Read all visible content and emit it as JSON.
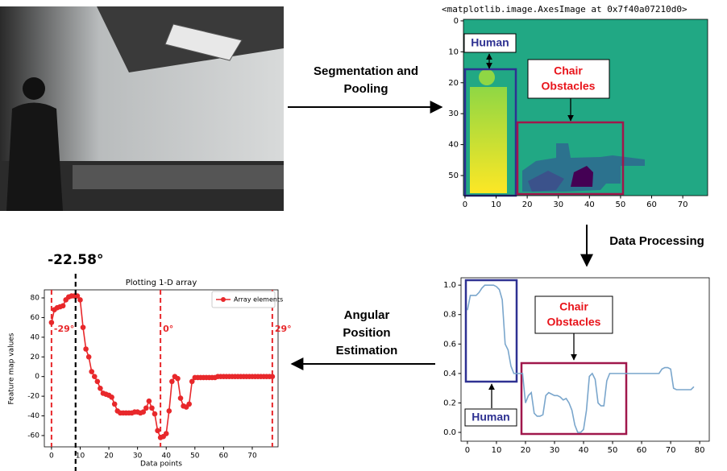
{
  "steps": {
    "segmentation": [
      "Segmentation and",
      "Pooling"
    ],
    "processing": [
      "Data Processing"
    ],
    "estimation": [
      "Angular",
      "Position",
      "Estimation"
    ]
  },
  "chart_data": [
    {
      "type": "image",
      "title": "<matplotlib.image.AxesImage at 0x7f40a07210d0>",
      "xlim": [
        -0.5,
        78
      ],
      "xticks": [
        0,
        10,
        20,
        30,
        40,
        50,
        60,
        70
      ],
      "ylim": [
        56.5,
        -0.5
      ],
      "yticks": [
        0,
        10,
        20,
        30,
        40,
        50
      ],
      "annotations": [
        {
          "text": [
            "Human"
          ]
        },
        {
          "text": [
            "Chair",
            "Obstacles"
          ]
        }
      ]
    },
    {
      "type": "line",
      "xlim": [
        -2.2,
        83.3
      ],
      "xticks": [
        0,
        10,
        20,
        30,
        40,
        50,
        60,
        70,
        80
      ],
      "ylim": [
        -0.06,
        1.05
      ],
      "yticks": [
        {
          "value": 0,
          "label": "0.0"
        },
        0.2,
        0.4,
        0.6,
        0.8,
        {
          "value": 1,
          "label": "1.0"
        }
      ],
      "x": [
        0,
        1,
        2,
        3,
        4,
        5,
        6,
        7,
        8,
        9,
        10,
        11,
        12,
        13,
        14,
        15,
        16,
        17,
        18,
        19,
        20,
        21,
        22,
        23,
        24,
        25,
        26,
        27,
        28,
        29,
        30,
        31,
        32,
        33,
        34,
        35,
        36,
        37,
        38,
        39,
        40,
        41,
        42,
        43,
        44,
        45,
        46,
        47,
        48,
        49,
        50,
        51,
        52,
        53,
        54,
        55,
        56,
        57,
        58,
        59,
        60,
        61,
        62,
        63,
        64,
        65,
        66,
        67,
        68,
        69,
        70,
        71,
        72,
        73,
        74,
        75,
        76,
        77,
        78
      ],
      "series": [
        {
          "color": "#7aa6cc",
          "values": [
            0.83,
            0.93,
            0.93,
            0.93,
            0.95,
            0.98,
            1.0,
            1.0,
            1.0,
            1.0,
            0.99,
            0.97,
            0.9,
            0.6,
            0.56,
            0.45,
            0.4,
            0.4,
            0.4,
            0.4,
            0.2,
            0.25,
            0.27,
            0.13,
            0.11,
            0.11,
            0.12,
            0.25,
            0.27,
            0.26,
            0.25,
            0.25,
            0.24,
            0.22,
            0.23,
            0.2,
            0.15,
            0.05,
            0.0,
            0.0,
            0.02,
            0.15,
            0.38,
            0.4,
            0.36,
            0.2,
            0.18,
            0.18,
            0.35,
            0.4,
            0.4,
            0.4,
            0.4,
            0.4,
            0.4,
            0.4,
            0.4,
            0.4,
            0.4,
            0.4,
            0.4,
            0.4,
            0.4,
            0.4,
            0.4,
            0.4,
            0.4,
            0.43,
            0.44,
            0.44,
            0.43,
            0.3,
            0.29,
            0.29,
            0.29,
            0.29,
            0.29,
            0.29,
            0.31
          ]
        }
      ],
      "annotations": [
        {
          "text": [
            "Human"
          ]
        },
        {
          "text": [
            "Chair",
            "Obstacles"
          ]
        }
      ]
    },
    {
      "type": "line",
      "title": "Plotting 1-D array",
      "x_label": "Data points",
      "y_label": "Feature map values",
      "xlim": [
        -2.5,
        79
      ],
      "xticks": [
        0,
        10,
        20,
        30,
        40,
        50,
        60,
        70
      ],
      "ylim": [
        -71.5,
        88.2
      ],
      "yticks": [
        -60,
        -40,
        -20,
        0,
        20,
        40,
        60,
        80
      ],
      "x": [
        0,
        1,
        2,
        3,
        4,
        5,
        6,
        7,
        8,
        9,
        10,
        11,
        12,
        13,
        14,
        15,
        16,
        17,
        18,
        19,
        20,
        21,
        22,
        23,
        24,
        25,
        26,
        27,
        28,
        29,
        30,
        31,
        32,
        33,
        34,
        35,
        36,
        37,
        38,
        39,
        40,
        41,
        42,
        43,
        44,
        45,
        46,
        47,
        48,
        49,
        50,
        51,
        52,
        53,
        54,
        55,
        56,
        57,
        58,
        59,
        60,
        61,
        62,
        63,
        64,
        65,
        66,
        67,
        68,
        69,
        70,
        71,
        72,
        73,
        74,
        75,
        76,
        77
      ],
      "series": [
        {
          "name": "Array elements",
          "color": "#e8282b",
          "marker": "o",
          "values": [
            55,
            68,
            70,
            71,
            72,
            78,
            81,
            82,
            82,
            82,
            78,
            50,
            28,
            20,
            5,
            0,
            -5,
            -12,
            -17,
            -18,
            -19,
            -21,
            -28,
            -35,
            -37,
            -37,
            -37,
            -37,
            -37,
            -36,
            -36,
            -37,
            -36,
            -32,
            -25,
            -32,
            -38,
            -55,
            -62,
            -61,
            -58,
            -35,
            -5,
            0,
            -2,
            -22,
            -30,
            -31,
            -28,
            -5,
            -1,
            -1,
            -1,
            -1,
            -1,
            -1,
            -1,
            -1,
            0,
            0,
            0,
            0,
            0,
            0,
            0,
            0,
            0,
            0,
            0,
            0,
            0,
            0,
            0,
            0,
            0,
            0,
            0,
            0
          ]
        }
      ],
      "legend": "upper right",
      "vlines": [
        {
          "x": 0,
          "label": "-29°"
        },
        {
          "x": 38,
          "label": "0°"
        },
        {
          "x": 77,
          "label": "29°"
        }
      ],
      "vline_color": "#e8282b",
      "marker_line": {
        "x": 8.4,
        "label": "-22.58°",
        "color": "#000000"
      }
    }
  ]
}
